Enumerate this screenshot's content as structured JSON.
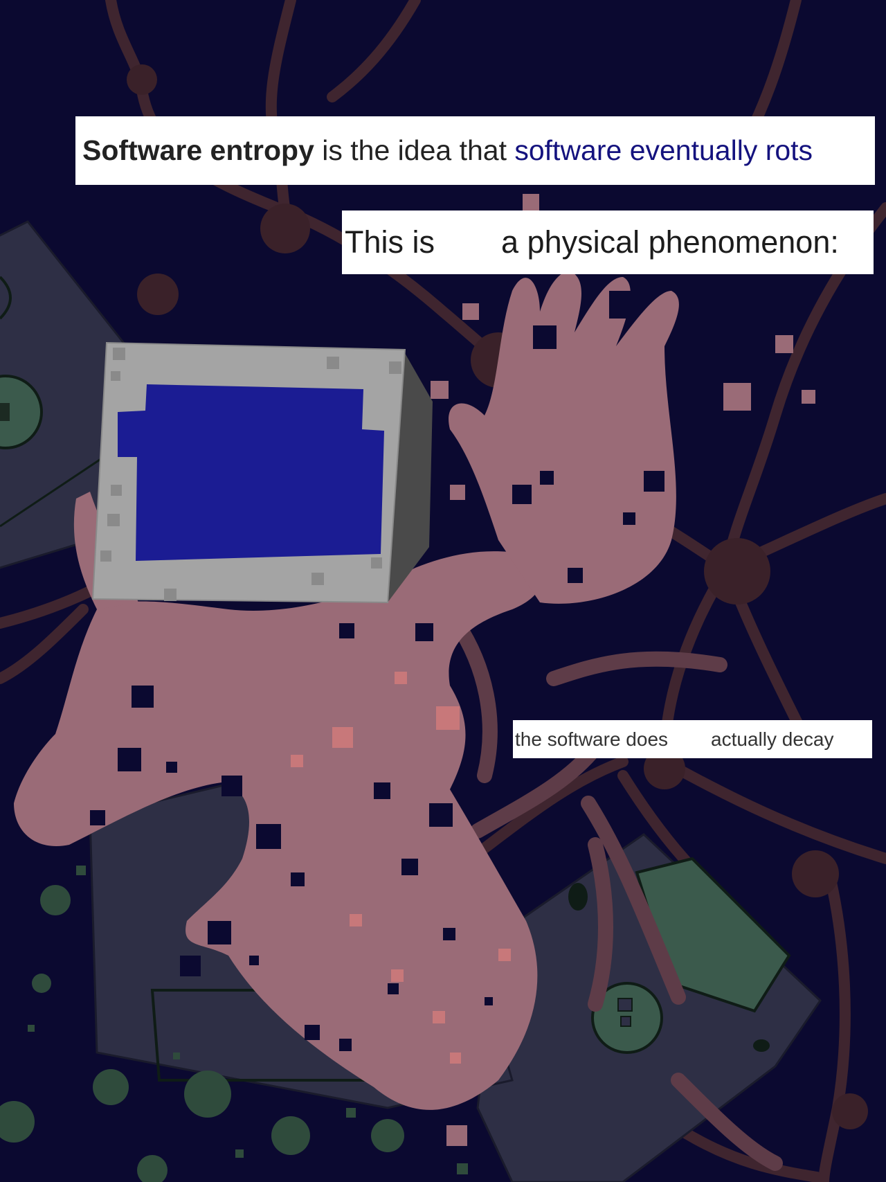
{
  "captions": {
    "line1": {
      "bold": "Software entropy",
      "middle": " is the idea that ",
      "link": "software eventually rots"
    },
    "line2": {
      "start": "This is",
      "end": "a physical phenomenon:"
    },
    "line3": {
      "start": "the software does",
      "end": "actually decay"
    }
  },
  "colors": {
    "background": "#0b0930",
    "branches": "#3f252f",
    "hand": "#9a6b77",
    "screen": "#1b1c93",
    "bezel": "#a4a4a4",
    "disk": "#2e2f45",
    "disk_label": "#3b5a4c",
    "link": "#14127e"
  },
  "icons": {
    "monitor": "monitor-icon",
    "hand": "hand-icon",
    "floppy_disk": "floppy-disk-icon"
  }
}
